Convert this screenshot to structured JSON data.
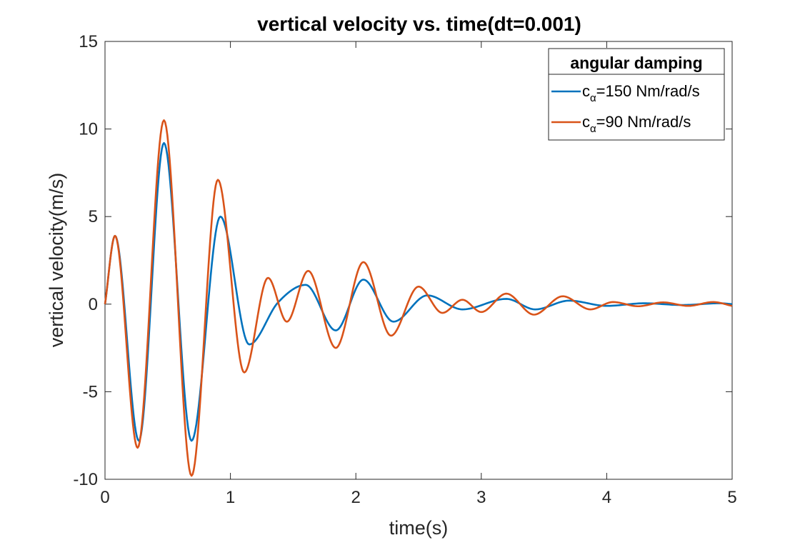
{
  "chart_data": {
    "type": "line",
    "title": "vertical velocity vs. time(dt=0.001)",
    "xlabel": "time(s)",
    "ylabel": "vertical velocity(m/s)",
    "xlim": [
      0,
      5
    ],
    "ylim": [
      -10,
      15
    ],
    "xticks": [
      0,
      1,
      2,
      3,
      4,
      5
    ],
    "yticks": [
      -10,
      -5,
      0,
      5,
      10,
      15
    ],
    "xtick_labels": [
      "0",
      "1",
      "2",
      "3",
      "4",
      "5"
    ],
    "ytick_labels": [
      "-10",
      "-5",
      "0",
      "5",
      "10",
      "15"
    ],
    "grid": false,
    "legend": {
      "title": "angular damping",
      "placement": "top-right"
    },
    "series": [
      {
        "name": "cα=150 Nm/rad/s",
        "label_base": "c",
        "label_sub": "α",
        "label_rest": "=150 Nm/rad/s",
        "color": "#0072BD",
        "x": [
          0,
          0.08,
          0.27,
          0.47,
          0.69,
          0.92,
          1.15,
          1.38,
          1.6,
          1.84,
          2.06,
          2.3,
          2.57,
          2.85,
          3.2,
          3.43,
          3.7,
          4.0,
          4.3,
          4.6,
          4.9,
          5.0
        ],
        "y": [
          0,
          3.9,
          -7.8,
          9.2,
          -7.8,
          5.0,
          -2.3,
          0.1,
          1.1,
          -1.5,
          1.4,
          -1.0,
          0.5,
          -0.3,
          0.3,
          -0.3,
          0.2,
          -0.1,
          0.05,
          -0.05,
          0.05,
          0.0
        ]
      },
      {
        "name": "cα=90 Nm/rad/s",
        "label_base": "c",
        "label_sub": "α",
        "label_rest": "=90 Nm/rad/s",
        "color": "#D95319",
        "x": [
          0,
          0.08,
          0.26,
          0.47,
          0.69,
          0.9,
          1.11,
          1.3,
          1.45,
          1.62,
          1.84,
          2.06,
          2.28,
          2.5,
          2.69,
          2.85,
          3.0,
          3.2,
          3.42,
          3.65,
          3.87,
          4.05,
          4.25,
          4.45,
          4.65,
          4.85,
          5.0
        ],
        "y": [
          0,
          3.9,
          -8.2,
          10.5,
          -9.8,
          7.1,
          -3.9,
          1.5,
          -1.0,
          1.9,
          -2.5,
          2.4,
          -1.8,
          1.0,
          -0.5,
          0.25,
          -0.45,
          0.6,
          -0.6,
          0.45,
          -0.3,
          0.12,
          -0.12,
          0.1,
          -0.1,
          0.12,
          -0.1
        ]
      }
    ]
  }
}
